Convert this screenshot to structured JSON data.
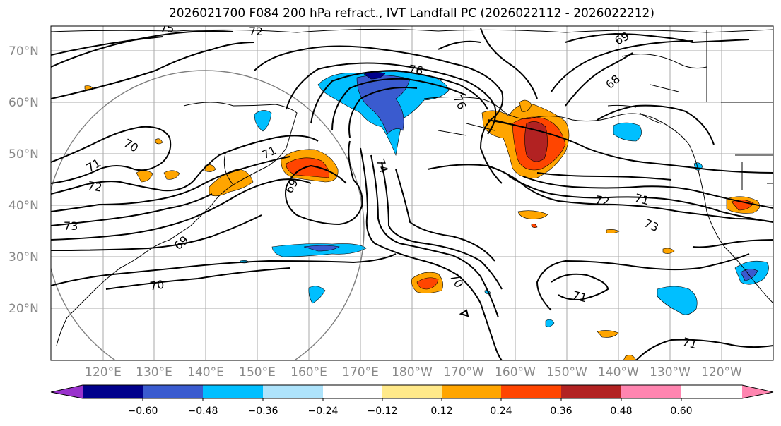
{
  "title": "2026021700 F084 200 hPa refract., IVT Landfall PC (2026022112 - 2026022212)",
  "lat_labels": [
    "70°N",
    "60°N",
    "50°N",
    "40°N",
    "30°N",
    "20°N"
  ],
  "lon_labels": [
    "120°E",
    "130°E",
    "140°E",
    "150°E",
    "160°E",
    "170°E",
    "180°W",
    "170°W",
    "160°W",
    "150°W",
    "140°W",
    "130°W",
    "120°W"
  ],
  "colorbar": {
    "ticks": [
      "−0.60",
      "−0.48",
      "−0.36",
      "−0.24",
      "−0.12",
      "0.12",
      "0.24",
      "0.36",
      "0.48",
      "0.60"
    ],
    "colors": [
      "#9932cc",
      "#00008b",
      "#3a5bcf",
      "#00bfff",
      "#aee3fb",
      "#ffffff",
      "#ffe98a",
      "#ffa500",
      "#ff4500",
      "#b22222",
      "#ff85b0"
    ]
  },
  "contour_labels": {
    "c75": "75",
    "c72a": "72",
    "c69a": "69",
    "c68": "68",
    "c76": "76",
    "c76b": "76",
    "c70a": "70",
    "c71a": "71",
    "c72b": "72",
    "c71b": "71",
    "c69b": "69",
    "c74": "74",
    "c73a": "73",
    "c69c": "69",
    "c70b": "70",
    "c72c": "72",
    "c71c": "71",
    "c73b": "73",
    "c70c": "70",
    "c71d": "71",
    "c71e": "71"
  }
}
